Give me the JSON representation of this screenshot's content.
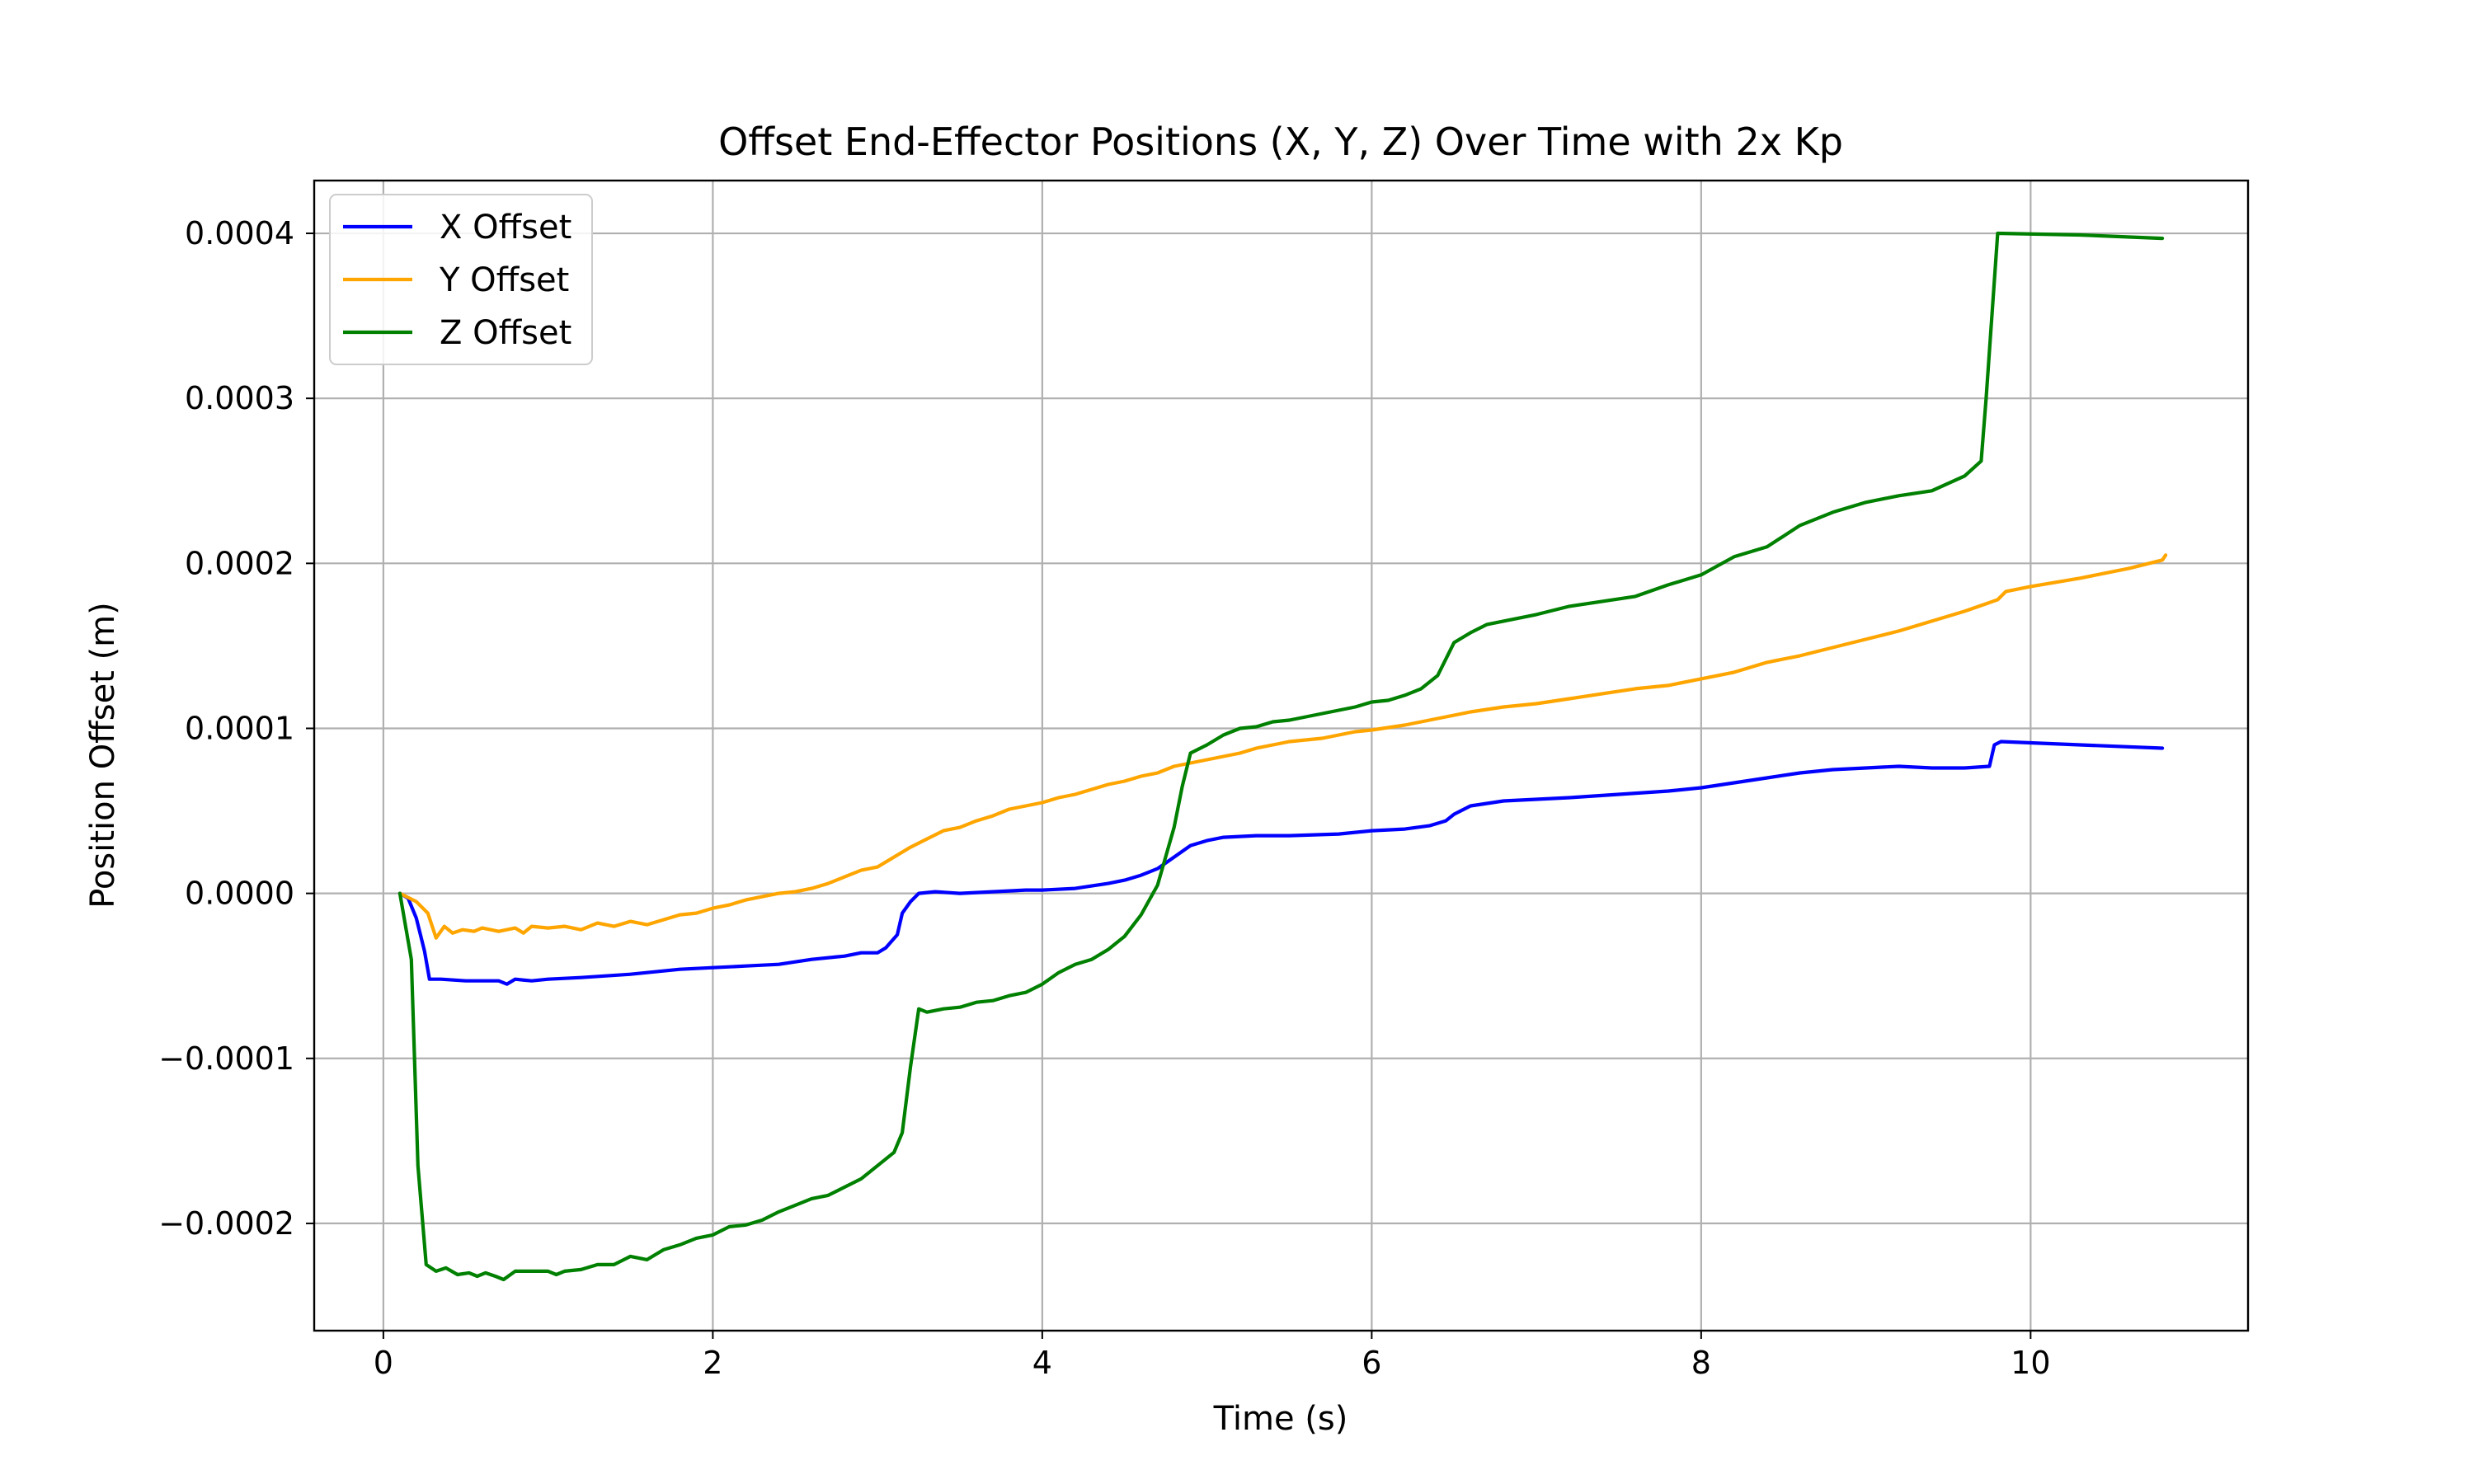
{
  "chart_data": {
    "type": "line",
    "title": "Offset End-Effector Positions (X, Y, Z) Over Time with 2x Kp",
    "xlabel": "Time (s)",
    "ylabel": "Position Offset (m)",
    "xlim": [
      -0.42,
      11.32
    ],
    "ylim": [
      -0.000265,
      0.000432
    ],
    "x_ticks": [
      0,
      2,
      4,
      6,
      8,
      10
    ],
    "x_tick_labels": [
      "0",
      "2",
      "4",
      "6",
      "8",
      "10"
    ],
    "y_ticks": [
      -0.0002,
      -0.0001,
      0.0,
      0.0001,
      0.0002,
      0.0003,
      0.0004
    ],
    "y_tick_labels": [
      "−0.0002",
      "−0.0001",
      "0.0000",
      "0.0001",
      "0.0002",
      "0.0003",
      "0.0004"
    ],
    "grid": true,
    "legend_position": "top-left",
    "series": [
      {
        "name": "X Offset",
        "color": "#0000ff",
        "points": [
          [
            0.1,
            0
          ],
          [
            0.15,
            -3e-06
          ],
          [
            0.2,
            -1.5e-05
          ],
          [
            0.25,
            -3.5e-05
          ],
          [
            0.28,
            -5.2e-05
          ],
          [
            0.35,
            -5.2e-05
          ],
          [
            0.5,
            -5.3e-05
          ],
          [
            0.7,
            -5.3e-05
          ],
          [
            0.75,
            -5.5e-05
          ],
          [
            0.8,
            -5.2e-05
          ],
          [
            0.9,
            -5.3e-05
          ],
          [
            1.0,
            -5.2e-05
          ],
          [
            1.2,
            -5.1e-05
          ],
          [
            1.5,
            -4.9e-05
          ],
          [
            1.8,
            -4.6e-05
          ],
          [
            2.0,
            -4.5e-05
          ],
          [
            2.2,
            -4.4e-05
          ],
          [
            2.4,
            -4.3e-05
          ],
          [
            2.6,
            -4e-05
          ],
          [
            2.8,
            -3.8e-05
          ],
          [
            2.9,
            -3.6e-05
          ],
          [
            3.0,
            -3.6e-05
          ],
          [
            3.05,
            -3.3e-05
          ],
          [
            3.12,
            -2.5e-05
          ],
          [
            3.15,
            -1.2e-05
          ],
          [
            3.2,
            -5e-06
          ],
          [
            3.25,
            0.0
          ],
          [
            3.35,
            1e-06
          ],
          [
            3.5,
            0.0
          ],
          [
            3.7,
            1e-06
          ],
          [
            3.9,
            2e-06
          ],
          [
            4.0,
            2e-06
          ],
          [
            4.2,
            3e-06
          ],
          [
            4.4,
            6e-06
          ],
          [
            4.5,
            8e-06
          ],
          [
            4.6,
            1.1e-05
          ],
          [
            4.7,
            1.5e-05
          ],
          [
            4.8,
            2.2e-05
          ],
          [
            4.9,
            2.9e-05
          ],
          [
            5.0,
            3.2e-05
          ],
          [
            5.1,
            3.4e-05
          ],
          [
            5.3,
            3.5e-05
          ],
          [
            5.5,
            3.5e-05
          ],
          [
            5.8,
            3.6e-05
          ],
          [
            6.0,
            3.8e-05
          ],
          [
            6.2,
            3.9e-05
          ],
          [
            6.35,
            4.1e-05
          ],
          [
            6.45,
            4.4e-05
          ],
          [
            6.5,
            4.8e-05
          ],
          [
            6.6,
            5.3e-05
          ],
          [
            6.8,
            5.6e-05
          ],
          [
            7.0,
            5.7e-05
          ],
          [
            7.2,
            5.8e-05
          ],
          [
            7.5,
            6e-05
          ],
          [
            7.8,
            6.2e-05
          ],
          [
            8.0,
            6.4e-05
          ],
          [
            8.2,
            6.7e-05
          ],
          [
            8.4,
            7e-05
          ],
          [
            8.6,
            7.3e-05
          ],
          [
            8.8,
            7.5e-05
          ],
          [
            9.0,
            7.6e-05
          ],
          [
            9.2,
            7.7e-05
          ],
          [
            9.4,
            7.6e-05
          ],
          [
            9.6,
            7.6e-05
          ],
          [
            9.75,
            7.7e-05
          ],
          [
            9.78,
            9e-05
          ],
          [
            9.82,
            9.2e-05
          ],
          [
            10.3,
            9e-05
          ],
          [
            10.8,
            8.8e-05
          ]
        ]
      },
      {
        "name": "Y Offset",
        "color": "#ffa500",
        "points": [
          [
            0.1,
            0
          ],
          [
            0.2,
            -5e-06
          ],
          [
            0.27,
            -1.2e-05
          ],
          [
            0.32,
            -2.7e-05
          ],
          [
            0.37,
            -2e-05
          ],
          [
            0.42,
            -2.4e-05
          ],
          [
            0.48,
            -2.2e-05
          ],
          [
            0.55,
            -2.3e-05
          ],
          [
            0.6,
            -2.1e-05
          ],
          [
            0.7,
            -2.3e-05
          ],
          [
            0.8,
            -2.1e-05
          ],
          [
            0.85,
            -2.4e-05
          ],
          [
            0.9,
            -2e-05
          ],
          [
            1.0,
            -2.1e-05
          ],
          [
            1.1,
            -2e-05
          ],
          [
            1.2,
            -2.2e-05
          ],
          [
            1.3,
            -1.8e-05
          ],
          [
            1.4,
            -2e-05
          ],
          [
            1.5,
            -1.7e-05
          ],
          [
            1.6,
            -1.9e-05
          ],
          [
            1.7,
            -1.6e-05
          ],
          [
            1.8,
            -1.3e-05
          ],
          [
            1.9,
            -1.2e-05
          ],
          [
            2.0,
            -9e-06
          ],
          [
            2.1,
            -7e-06
          ],
          [
            2.2,
            -4e-06
          ],
          [
            2.3,
            -2e-06
          ],
          [
            2.4,
            0.0
          ],
          [
            2.5,
            1e-06
          ],
          [
            2.6,
            3e-06
          ],
          [
            2.7,
            6e-06
          ],
          [
            2.8,
            1e-05
          ],
          [
            2.9,
            1.4e-05
          ],
          [
            3.0,
            1.6e-05
          ],
          [
            3.1,
            2.2e-05
          ],
          [
            3.2,
            2.8e-05
          ],
          [
            3.3,
            3.3e-05
          ],
          [
            3.4,
            3.8e-05
          ],
          [
            3.5,
            4e-05
          ],
          [
            3.6,
            4.4e-05
          ],
          [
            3.7,
            4.7e-05
          ],
          [
            3.8,
            5.1e-05
          ],
          [
            3.9,
            5.3e-05
          ],
          [
            4.0,
            5.5e-05
          ],
          [
            4.1,
            5.8e-05
          ],
          [
            4.2,
            6e-05
          ],
          [
            4.3,
            6.3e-05
          ],
          [
            4.4,
            6.6e-05
          ],
          [
            4.5,
            6.8e-05
          ],
          [
            4.6,
            7.1e-05
          ],
          [
            4.7,
            7.3e-05
          ],
          [
            4.8,
            7.7e-05
          ],
          [
            4.9,
            7.9e-05
          ],
          [
            5.0,
            8.1e-05
          ],
          [
            5.1,
            8.3e-05
          ],
          [
            5.2,
            8.5e-05
          ],
          [
            5.3,
            8.8e-05
          ],
          [
            5.4,
            9e-05
          ],
          [
            5.5,
            9.2e-05
          ],
          [
            5.6,
            9.3e-05
          ],
          [
            5.7,
            9.4e-05
          ],
          [
            5.8,
            9.6e-05
          ],
          [
            5.9,
            9.8e-05
          ],
          [
            6.0,
            9.9e-05
          ],
          [
            6.2,
            0.000102
          ],
          [
            6.4,
            0.000106
          ],
          [
            6.6,
            0.00011
          ],
          [
            6.8,
            0.000113
          ],
          [
            7.0,
            0.000115
          ],
          [
            7.2,
            0.000118
          ],
          [
            7.4,
            0.000121
          ],
          [
            7.6,
            0.000124
          ],
          [
            7.8,
            0.000126
          ],
          [
            8.0,
            0.00013
          ],
          [
            8.2,
            0.000134
          ],
          [
            8.4,
            0.00014
          ],
          [
            8.6,
            0.000144
          ],
          [
            8.8,
            0.000149
          ],
          [
            9.0,
            0.000154
          ],
          [
            9.2,
            0.000159
          ],
          [
            9.4,
            0.000165
          ],
          [
            9.6,
            0.000171
          ],
          [
            9.8,
            0.000178
          ],
          [
            9.85,
            0.000183
          ],
          [
            10.0,
            0.000186
          ],
          [
            10.3,
            0.000191
          ],
          [
            10.6,
            0.000197
          ],
          [
            10.8,
            0.000202
          ],
          [
            10.82,
            0.000205
          ]
        ]
      },
      {
        "name": "Z Offset",
        "color": "#008000",
        "points": [
          [
            0.1,
            0
          ],
          [
            0.17,
            -4e-05
          ],
          [
            0.21,
            -0.000165
          ],
          [
            0.26,
            -0.000225
          ],
          [
            0.32,
            -0.000229
          ],
          [
            0.38,
            -0.000227
          ],
          [
            0.45,
            -0.000231
          ],
          [
            0.52,
            -0.00023
          ],
          [
            0.57,
            -0.000232
          ],
          [
            0.62,
            -0.00023
          ],
          [
            0.68,
            -0.000232
          ],
          [
            0.73,
            -0.000234
          ],
          [
            0.8,
            -0.000229
          ],
          [
            0.9,
            -0.000229
          ],
          [
            1.0,
            -0.000229
          ],
          [
            1.05,
            -0.000231
          ],
          [
            1.1,
            -0.000229
          ],
          [
            1.2,
            -0.000228
          ],
          [
            1.3,
            -0.000225
          ],
          [
            1.4,
            -0.000225
          ],
          [
            1.5,
            -0.00022
          ],
          [
            1.6,
            -0.000222
          ],
          [
            1.7,
            -0.000216
          ],
          [
            1.8,
            -0.000213
          ],
          [
            1.9,
            -0.000209
          ],
          [
            2.0,
            -0.000207
          ],
          [
            2.1,
            -0.000202
          ],
          [
            2.2,
            -0.000201
          ],
          [
            2.3,
            -0.000198
          ],
          [
            2.4,
            -0.000193
          ],
          [
            2.5,
            -0.000189
          ],
          [
            2.6,
            -0.000185
          ],
          [
            2.7,
            -0.000183
          ],
          [
            2.8,
            -0.000178
          ],
          [
            2.9,
            -0.000173
          ],
          [
            3.0,
            -0.000165
          ],
          [
            3.1,
            -0.000157
          ],
          [
            3.15,
            -0.000145
          ],
          [
            3.2,
            -0.000105
          ],
          [
            3.25,
            -7e-05
          ],
          [
            3.3,
            -7.2e-05
          ],
          [
            3.4,
            -7e-05
          ],
          [
            3.5,
            -6.9e-05
          ],
          [
            3.6,
            -6.6e-05
          ],
          [
            3.7,
            -6.5e-05
          ],
          [
            3.8,
            -6.2e-05
          ],
          [
            3.9,
            -6e-05
          ],
          [
            4.0,
            -5.5e-05
          ],
          [
            4.1,
            -4.8e-05
          ],
          [
            4.2,
            -4.3e-05
          ],
          [
            4.3,
            -4e-05
          ],
          [
            4.4,
            -3.4e-05
          ],
          [
            4.5,
            -2.6e-05
          ],
          [
            4.6,
            -1.3e-05
          ],
          [
            4.7,
            5e-06
          ],
          [
            4.8,
            4e-05
          ],
          [
            4.85,
            6.5e-05
          ],
          [
            4.9,
            8.5e-05
          ],
          [
            5.0,
            9e-05
          ],
          [
            5.1,
            9.6e-05
          ],
          [
            5.2,
            0.0001
          ],
          [
            5.3,
            0.000101
          ],
          [
            5.4,
            0.000104
          ],
          [
            5.5,
            0.000105
          ],
          [
            5.6,
            0.000107
          ],
          [
            5.7,
            0.000109
          ],
          [
            5.8,
            0.000111
          ],
          [
            5.9,
            0.000113
          ],
          [
            6.0,
            0.000116
          ],
          [
            6.1,
            0.000117
          ],
          [
            6.2,
            0.00012
          ],
          [
            6.3,
            0.000124
          ],
          [
            6.4,
            0.000132
          ],
          [
            6.5,
            0.000152
          ],
          [
            6.6,
            0.000158
          ],
          [
            6.7,
            0.000163
          ],
          [
            6.8,
            0.000165
          ],
          [
            7.0,
            0.000169
          ],
          [
            7.2,
            0.000174
          ],
          [
            7.4,
            0.000177
          ],
          [
            7.6,
            0.00018
          ],
          [
            7.8,
            0.000187
          ],
          [
            8.0,
            0.000193
          ],
          [
            8.2,
            0.000204
          ],
          [
            8.4,
            0.00021
          ],
          [
            8.6,
            0.000223
          ],
          [
            8.8,
            0.000231
          ],
          [
            9.0,
            0.000237
          ],
          [
            9.2,
            0.000241
          ],
          [
            9.4,
            0.000244
          ],
          [
            9.6,
            0.000253
          ],
          [
            9.7,
            0.000262
          ],
          [
            9.73,
            0.0003
          ],
          [
            9.8,
            0.0004
          ],
          [
            10.3,
            0.000399
          ],
          [
            10.8,
            0.000397
          ]
        ]
      }
    ]
  }
}
